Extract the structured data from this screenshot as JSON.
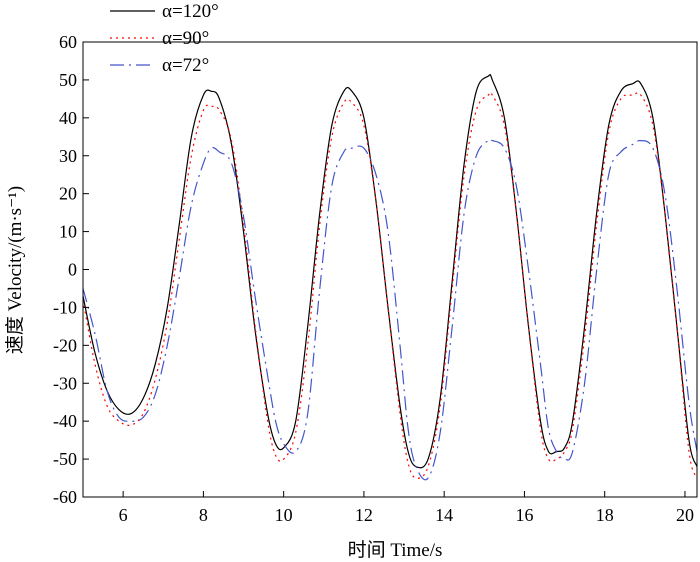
{
  "chart_data": {
    "type": "line",
    "title": "",
    "xlabel": "时间 Time/s",
    "ylabel": "速度 Velocity/(m·s⁻¹)",
    "xlim": [
      5,
      20.3
    ],
    "ylim": [
      -60,
      60
    ],
    "xticks": [
      6,
      8,
      10,
      12,
      14,
      16,
      18,
      20
    ],
    "yticks": [
      -60,
      -50,
      -40,
      -30,
      -20,
      -10,
      0,
      10,
      20,
      30,
      40,
      50,
      60
    ],
    "grid": false,
    "legend_position": "top-left",
    "series": [
      {
        "name": "α=120°",
        "color": "#000000",
        "dash": "solid",
        "x": [
          5.0,
          5.3,
          5.6,
          5.9,
          6.2,
          6.5,
          6.8,
          7.1,
          7.4,
          7.7,
          8.0,
          8.2,
          8.4,
          8.7,
          9.0,
          9.3,
          9.6,
          9.8,
          10.0,
          10.3,
          10.6,
          10.9,
          11.2,
          11.5,
          11.7,
          12.0,
          12.3,
          12.6,
          12.9,
          13.1,
          13.3,
          13.6,
          13.9,
          14.2,
          14.5,
          14.8,
          15.1,
          15.2,
          15.5,
          15.8,
          16.1,
          16.4,
          16.6,
          16.8,
          17.0,
          17.2,
          17.5,
          17.8,
          18.1,
          18.4,
          18.7,
          18.9,
          19.2,
          19.5,
          19.8,
          20.1,
          20.3
        ],
        "y": [
          -7,
          -22,
          -32,
          -37,
          -38,
          -34,
          -25,
          -10,
          12,
          35,
          46,
          47,
          45,
          33,
          10,
          -17,
          -38,
          -46,
          -47,
          -40,
          -15,
          15,
          38,
          47,
          47,
          40,
          18,
          -10,
          -36,
          -48,
          -52,
          -50,
          -34,
          -3,
          28,
          47,
          51,
          50,
          40,
          15,
          -15,
          -40,
          -48,
          -48,
          -47,
          -40,
          -15,
          15,
          38,
          47,
          49,
          49,
          40,
          15,
          -15,
          -45,
          -52
        ]
      },
      {
        "name": "α=90°",
        "color": "#ff0000",
        "dash": "2,4",
        "x": [
          5.0,
          5.3,
          5.6,
          5.9,
          6.2,
          6.5,
          6.8,
          7.1,
          7.4,
          7.7,
          8.0,
          8.2,
          8.4,
          8.7,
          9.0,
          9.3,
          9.6,
          9.8,
          10.0,
          10.3,
          10.6,
          10.9,
          11.2,
          11.5,
          11.7,
          12.0,
          12.3,
          12.6,
          12.9,
          13.1,
          13.3,
          13.6,
          13.9,
          14.2,
          14.5,
          14.8,
          15.1,
          15.2,
          15.5,
          15.8,
          16.1,
          16.4,
          16.6,
          16.8,
          17.0,
          17.2,
          17.5,
          17.8,
          18.1,
          18.4,
          18.7,
          18.9,
          19.2,
          19.5,
          19.8,
          20.1,
          20.3
        ],
        "y": [
          -8,
          -25,
          -36,
          -40,
          -41,
          -38,
          -29,
          -14,
          8,
          30,
          42,
          43,
          42,
          34,
          12,
          -16,
          -40,
          -49,
          -50,
          -43,
          -20,
          12,
          35,
          44,
          44,
          38,
          18,
          -10,
          -38,
          -51,
          -55,
          -52,
          -36,
          -5,
          25,
          42,
          46,
          46,
          38,
          15,
          -15,
          -42,
          -50,
          -50,
          -48,
          -42,
          -18,
          12,
          36,
          45,
          46,
          46,
          38,
          15,
          -15,
          -48,
          -55
        ]
      },
      {
        "name": "α=72°",
        "color": "#4455cc",
        "dash": "14,5,2,5",
        "x": [
          5.0,
          5.3,
          5.6,
          5.9,
          6.2,
          6.5,
          6.8,
          7.1,
          7.4,
          7.7,
          8.0,
          8.2,
          8.4,
          8.7,
          9.0,
          9.3,
          9.6,
          9.8,
          10.0,
          10.3,
          10.6,
          10.9,
          11.2,
          11.5,
          11.7,
          12.0,
          12.3,
          12.6,
          12.9,
          13.1,
          13.3,
          13.6,
          13.9,
          14.2,
          14.5,
          14.8,
          15.1,
          15.2,
          15.5,
          15.8,
          16.1,
          16.4,
          16.6,
          16.8,
          17.0,
          17.2,
          17.5,
          17.8,
          18.1,
          18.4,
          18.7,
          18.9,
          19.2,
          19.5,
          19.8,
          20.1,
          20.3
        ],
        "y": [
          -5,
          -17,
          -32,
          -39,
          -40,
          -39,
          -33,
          -20,
          -2,
          17,
          28,
          32,
          31,
          28,
          14,
          -8,
          -28,
          -40,
          -46,
          -48,
          -38,
          -5,
          22,
          31,
          32,
          32,
          25,
          10,
          -20,
          -42,
          -52,
          -55,
          -43,
          -15,
          15,
          30,
          34,
          34,
          32,
          22,
          0,
          -25,
          -42,
          -48,
          -50,
          -48,
          -30,
          0,
          25,
          31,
          33,
          34,
          32,
          20,
          -5,
          -35,
          -48
        ]
      }
    ]
  }
}
